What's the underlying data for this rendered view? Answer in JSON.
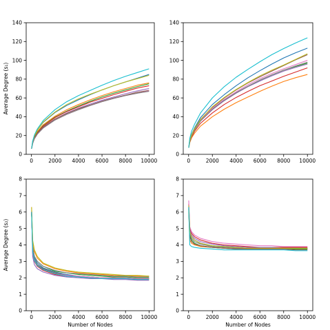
{
  "figure": {
    "background": "#ffffff"
  },
  "chart_data": [
    {
      "type": "line",
      "panel": "top-left",
      "xlabel": "",
      "ylabel": "Average Degree (s₁)",
      "xlim": [
        0,
        10000
      ],
      "ylim": [
        0,
        140
      ],
      "xticks": [
        "0",
        "2000",
        "4000",
        "6000",
        "8000",
        "10000"
      ],
      "yticks": [
        "0",
        "20",
        "40",
        "60",
        "80",
        "100",
        "120",
        "140"
      ],
      "grid": false,
      "legend": "none",
      "x": [
        10,
        100,
        250,
        500,
        1000,
        2000,
        3000,
        4000,
        5000,
        6000,
        7000,
        8000,
        9000,
        10000
      ],
      "series": [
        {
          "color": "#1f77b4",
          "values": [
            6,
            13.5,
            19.5,
            25.5,
            34,
            44.5,
            52,
            58,
            63.5,
            68.5,
            73,
            77,
            81,
            85
          ]
        },
        {
          "color": "#ff7f0e",
          "values": [
            6,
            13,
            18.5,
            24,
            31.5,
            40.5,
            47.5,
            53,
            58,
            62.5,
            66.5,
            70,
            73.5,
            76
          ]
        },
        {
          "color": "#2ca02c",
          "values": [
            6,
            12.5,
            18,
            23,
            30.5,
            39.5,
            46,
            51.5,
            56.5,
            61,
            65,
            68.5,
            72,
            75
          ]
        },
        {
          "color": "#d62728",
          "values": [
            6,
            12,
            17.5,
            22.5,
            30,
            39,
            45.5,
            50.5,
            55.5,
            59.5,
            63.5,
            67,
            70.5,
            73
          ]
        },
        {
          "color": "#9467bd",
          "values": [
            6,
            12,
            17,
            22,
            29,
            37.5,
            44,
            49,
            53.5,
            57.5,
            61,
            64.5,
            67.5,
            70
          ]
        },
        {
          "color": "#8c564b",
          "values": [
            6,
            12,
            17,
            22,
            29,
            37.5,
            43.5,
            48.5,
            52.5,
            56.5,
            60,
            63,
            66,
            68
          ]
        },
        {
          "color": "#e377c2",
          "values": [
            6,
            11.5,
            16.5,
            21.5,
            28,
            36.5,
            42.5,
            47.5,
            52,
            56,
            59.5,
            62.5,
            65,
            67.5
          ]
        },
        {
          "color": "#7f7f7f",
          "values": [
            6,
            11.5,
            16.5,
            21.5,
            28,
            36.5,
            42.5,
            47.5,
            52,
            56,
            59.5,
            62.5,
            65,
            67
          ]
        },
        {
          "color": "#bcbd22",
          "values": [
            6,
            13.5,
            19.5,
            25.5,
            34.5,
            45,
            53,
            59,
            64,
            68.5,
            73,
            77,
            80.5,
            84
          ]
        },
        {
          "color": "#17becf",
          "values": [
            6,
            14,
            20.5,
            27,
            36,
            47.5,
            56,
            62.5,
            68,
            73.5,
            78.5,
            83,
            87,
            91
          ]
        }
      ]
    },
    {
      "type": "line",
      "panel": "top-right",
      "xlabel": "",
      "ylabel": "",
      "xlim": [
        0,
        10000
      ],
      "ylim": [
        0,
        140
      ],
      "xticks": [
        "0",
        "2000",
        "4000",
        "6000",
        "8000",
        "10000"
      ],
      "yticks": [
        "0",
        "20",
        "40",
        "60",
        "80",
        "100",
        "120",
        "140"
      ],
      "grid": false,
      "legend": "none",
      "x": [
        10,
        100,
        250,
        500,
        1000,
        2000,
        3000,
        4000,
        5000,
        6000,
        7000,
        8000,
        9000,
        10000
      ],
      "series": [
        {
          "color": "#1f77b4",
          "values": [
            7,
            15,
            21,
            28,
            39,
            53,
            63.5,
            73,
            81.5,
            89,
            96,
            102.5,
            108,
            113
          ]
        },
        {
          "color": "#ff7f0e",
          "values": [
            7,
            12.5,
            17.5,
            22.5,
            30,
            40,
            48,
            55,
            61,
            67,
            72.5,
            77.5,
            81.5,
            85
          ]
        },
        {
          "color": "#2ca02c",
          "values": [
            7,
            14,
            19.5,
            26,
            35.5,
            48,
            57.5,
            65.5,
            72.5,
            79,
            84.5,
            89.5,
            93.5,
            97
          ]
        },
        {
          "color": "#d62728",
          "values": [
            7,
            13.5,
            18.5,
            24.5,
            33,
            44,
            53,
            60.5,
            67,
            73,
            78,
            83,
            87.5,
            92
          ]
        },
        {
          "color": "#9467bd",
          "values": [
            7,
            14,
            19.5,
            26,
            35.5,
            47.5,
            57,
            65,
            72,
            78,
            83.5,
            88.5,
            92.5,
            96
          ]
        },
        {
          "color": "#8c564b",
          "values": [
            7,
            14.5,
            20.5,
            27,
            37,
            50,
            60,
            68.5,
            76,
            82.5,
            88.5,
            94.5,
            100.5,
            106
          ]
        },
        {
          "color": "#e377c2",
          "values": [
            7,
            14.5,
            20,
            26.5,
            36,
            49,
            58.5,
            66.5,
            74,
            80.5,
            86,
            91,
            95.5,
            100
          ]
        },
        {
          "color": "#7f7f7f",
          "values": [
            7,
            14,
            19.5,
            26,
            35.5,
            48,
            57.5,
            65.5,
            72.5,
            79,
            84.5,
            89.5,
            94,
            98
          ]
        },
        {
          "color": "#bcbd22",
          "values": [
            7,
            14.5,
            20.5,
            27,
            37,
            50.5,
            60.5,
            69,
            76.5,
            83.5,
            89.5,
            95,
            101,
            107
          ]
        },
        {
          "color": "#17becf",
          "values": [
            7,
            17,
            24.5,
            32,
            44,
            60,
            72,
            82,
            90.5,
            98.5,
            106,
            112.5,
            118.5,
            124
          ]
        }
      ]
    },
    {
      "type": "line",
      "panel": "bottom-left",
      "xlabel": "Number of Nodes",
      "ylabel": "Average Degree (s₂)",
      "xlim": [
        0,
        10000
      ],
      "ylim": [
        0,
        8
      ],
      "xticks": [
        "0",
        "2000",
        "4000",
        "6000",
        "8000",
        "10000"
      ],
      "yticks": [
        "0",
        "1",
        "2",
        "3",
        "4",
        "5",
        "6",
        "7",
        "8"
      ],
      "grid": false,
      "legend": "none",
      "x": [
        10,
        100,
        250,
        500,
        1000,
        2000,
        3000,
        4000,
        5000,
        6000,
        7000,
        8000,
        9000,
        10000
      ],
      "series": [
        {
          "color": "#1f77b4",
          "values": [
            6.0,
            3.8,
            3.2,
            2.9,
            2.6,
            2.35,
            2.2,
            2.1,
            2.05,
            2.0,
            2.0,
            1.95,
            1.95,
            1.95
          ]
        },
        {
          "color": "#ff7f0e",
          "values": [
            6.3,
            4.2,
            3.6,
            3.2,
            2.85,
            2.55,
            2.4,
            2.3,
            2.25,
            2.2,
            2.15,
            2.12,
            2.1,
            2.1
          ]
        },
        {
          "color": "#2ca02c",
          "values": [
            5.9,
            3.9,
            3.3,
            3.0,
            2.7,
            2.4,
            2.3,
            2.2,
            2.15,
            2.1,
            2.05,
            2.05,
            2.0,
            2.0
          ]
        },
        {
          "color": "#d62728",
          "values": [
            6.0,
            3.5,
            3.0,
            2.7,
            2.45,
            2.2,
            2.1,
            2.05,
            2.0,
            1.95,
            1.95,
            1.95,
            1.9,
            1.9
          ]
        },
        {
          "color": "#9467bd",
          "values": [
            6.1,
            3.3,
            2.8,
            2.55,
            2.35,
            2.15,
            2.05,
            2.0,
            1.95,
            1.95,
            1.9,
            1.9,
            1.85,
            1.85
          ]
        },
        {
          "color": "#8c564b",
          "values": [
            6.0,
            3.7,
            3.1,
            2.8,
            2.55,
            2.3,
            2.15,
            2.1,
            2.05,
            2.0,
            2.0,
            1.95,
            1.95,
            1.95
          ]
        },
        {
          "color": "#e377c2",
          "values": [
            6.0,
            3.6,
            3.05,
            2.75,
            2.5,
            2.25,
            2.15,
            2.1,
            2.05,
            2.0,
            2.0,
            2.0,
            1.95,
            1.95
          ]
        },
        {
          "color": "#7f7f7f",
          "values": [
            5.9,
            3.9,
            3.3,
            3.0,
            2.7,
            2.45,
            2.3,
            2.25,
            2.2,
            2.15,
            2.1,
            2.1,
            2.05,
            2.05
          ]
        },
        {
          "color": "#bcbd22",
          "values": [
            6.3,
            4.3,
            3.7,
            3.3,
            2.9,
            2.6,
            2.45,
            2.35,
            2.3,
            2.25,
            2.2,
            2.15,
            2.15,
            2.1
          ]
        },
        {
          "color": "#17becf",
          "values": [
            6.0,
            3.6,
            3.05,
            2.75,
            2.5,
            2.25,
            2.1,
            2.05,
            2.0,
            1.95,
            1.95,
            1.95,
            1.9,
            1.9
          ]
        }
      ]
    },
    {
      "type": "line",
      "panel": "bottom-right",
      "xlabel": "Number of Nodes",
      "ylabel": "",
      "xlim": [
        0,
        10000
      ],
      "ylim": [
        0,
        8
      ],
      "xticks": [
        "0",
        "2000",
        "4000",
        "6000",
        "8000",
        "10000"
      ],
      "yticks": [
        "0",
        "1",
        "2",
        "3",
        "4",
        "5",
        "6",
        "7",
        "8"
      ],
      "grid": false,
      "legend": "none",
      "x": [
        10,
        100,
        250,
        500,
        1000,
        2000,
        3000,
        4000,
        5000,
        6000,
        7000,
        8000,
        9000,
        10000
      ],
      "series": [
        {
          "color": "#1f77b4",
          "values": [
            6.3,
            4.8,
            4.5,
            4.3,
            4.1,
            3.95,
            3.9,
            3.85,
            3.8,
            3.8,
            3.8,
            3.8,
            3.8,
            3.8
          ]
        },
        {
          "color": "#ff7f0e",
          "values": [
            6.0,
            4.3,
            4.1,
            4.0,
            3.9,
            3.85,
            3.8,
            3.8,
            3.8,
            3.8,
            3.8,
            3.75,
            3.75,
            3.75
          ]
        },
        {
          "color": "#2ca02c",
          "values": [
            6.2,
            4.6,
            4.3,
            4.1,
            3.95,
            3.85,
            3.8,
            3.75,
            3.75,
            3.75,
            3.75,
            3.75,
            3.75,
            3.75
          ]
        },
        {
          "color": "#d62728",
          "values": [
            6.5,
            5.0,
            4.7,
            4.5,
            4.3,
            4.1,
            4.0,
            3.95,
            3.9,
            3.85,
            3.85,
            3.85,
            3.85,
            3.85
          ]
        },
        {
          "color": "#9467bd",
          "values": [
            6.4,
            4.9,
            4.6,
            4.4,
            4.2,
            4.05,
            3.95,
            3.9,
            3.85,
            3.85,
            3.85,
            3.8,
            3.8,
            3.8
          ]
        },
        {
          "color": "#8c564b",
          "values": [
            6.1,
            4.5,
            4.2,
            4.05,
            3.95,
            3.85,
            3.8,
            3.75,
            3.75,
            3.75,
            3.75,
            3.75,
            3.7,
            3.7
          ]
        },
        {
          "color": "#e377c2",
          "values": [
            6.7,
            5.1,
            4.8,
            4.6,
            4.4,
            4.2,
            4.1,
            4.05,
            4.0,
            3.95,
            3.95,
            3.9,
            3.9,
            3.9
          ]
        },
        {
          "color": "#7f7f7f",
          "values": [
            6.2,
            4.7,
            4.4,
            4.2,
            4.05,
            3.9,
            3.85,
            3.8,
            3.8,
            3.8,
            3.8,
            3.8,
            3.8,
            3.8
          ]
        },
        {
          "color": "#bcbd22",
          "values": [
            6.4,
            4.8,
            4.5,
            4.3,
            4.1,
            3.95,
            3.9,
            3.85,
            3.8,
            3.8,
            3.8,
            3.8,
            3.8,
            3.8
          ]
        },
        {
          "color": "#17becf",
          "values": [
            6.3,
            4.0,
            3.9,
            3.85,
            3.8,
            3.75,
            3.7,
            3.7,
            3.7,
            3.7,
            3.7,
            3.7,
            3.65,
            3.65
          ]
        }
      ]
    }
  ]
}
